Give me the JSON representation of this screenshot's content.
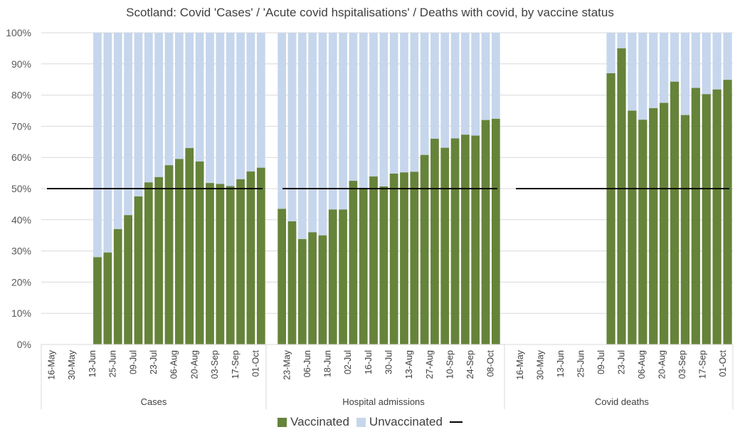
{
  "chart_data": {
    "type": "bar",
    "stacked": true,
    "title": "Scotland: Covid 'Cases' / 'Acute covid hspitalisations' / Deaths with covid, by vaccine status",
    "y_ticks": [
      "0%",
      "10%",
      "20%",
      "30%",
      "40%",
      "50%",
      "60%",
      "70%",
      "80%",
      "90%",
      "100%"
    ],
    "ylim": [
      0,
      100
    ],
    "reference_line": 50,
    "colors": {
      "vaccinated": "#66833a",
      "unvaccinated": "#c6d6ec",
      "reference": "#000000"
    },
    "legend": {
      "vaccinated": "Vaccinated",
      "unvaccinated": "Unvaccinated",
      "reference": ""
    },
    "legend_position": "bottom",
    "panels": [
      {
        "name": "Cases",
        "tick_labels": [
          "16-May",
          "30-May",
          "13-Jun",
          "25-Jun",
          "09-Jul",
          "23-Jul",
          "06-Aug",
          "20-Aug",
          "03-Sep",
          "17-Sep",
          "01-Oct"
        ],
        "vaccinated": [
          null,
          null,
          null,
          null,
          null,
          28,
          29.5,
          37,
          41.5,
          47.5,
          52,
          53.7,
          57.5,
          59.5,
          63,
          58.7,
          51.8,
          51.5,
          50.8,
          53,
          55.5,
          56.7
        ],
        "reference_line": true
      },
      {
        "name": "Hospital admissions",
        "tick_labels": [
          "23-May",
          "06-Jun",
          "18-Jun",
          "02-Jul",
          "16-Jul",
          "30-Jul",
          "13-Aug",
          "27-Aug",
          "10-Sep",
          "24-Sep",
          "08-Oct"
        ],
        "vaccinated": [
          43.5,
          39.5,
          33.8,
          36,
          35,
          43.3,
          43.3,
          52.5,
          49.8,
          53.9,
          50.7,
          54.8,
          55.2,
          55.4,
          60.8,
          66,
          63.1,
          66.1,
          67.3,
          67,
          72,
          72.4
        ],
        "reference_line": true
      },
      {
        "name": "Covid deaths",
        "tick_labels": [
          "16-May",
          "30-May",
          "13-Jun",
          "25-Jun",
          "09-Jul",
          "23-Jul",
          "06-Aug",
          "20-Aug",
          "03-Sep",
          "17-Sep",
          "01-Oct"
        ],
        "vaccinated": [
          null,
          null,
          null,
          null,
          null,
          null,
          null,
          null,
          null,
          87,
          95,
          75,
          72.1,
          75.8,
          77.5,
          84.3,
          73.6,
          82.3,
          80.3,
          81.8,
          84.9
        ],
        "reference_line": true
      }
    ]
  }
}
